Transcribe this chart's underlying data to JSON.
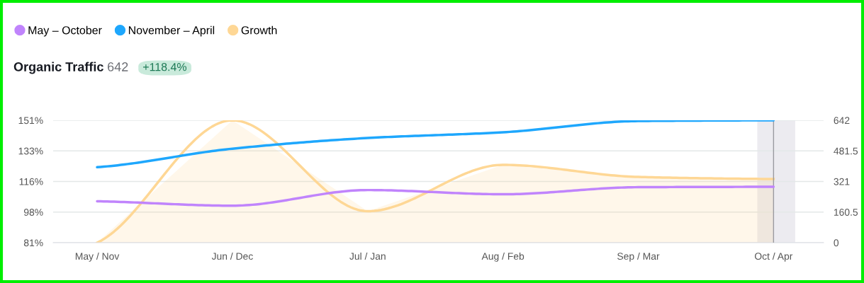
{
  "chart_data": {
    "type": "line",
    "title": "Organic Traffic",
    "subtitle": "642",
    "annotations": [
      "+118.4%"
    ],
    "categories": [
      "May / Nov",
      "Jun / Dec",
      "Jul / Jan",
      "Aug / Feb",
      "Sep / Mar",
      "Oct / Apr"
    ],
    "series": [
      {
        "name": "May – October",
        "color": "#c084fc",
        "axis": "y2",
        "values": [
          217,
          194,
          276,
          254,
          291,
          293
        ]
      },
      {
        "name": "November – April",
        "color": "#1ea7fd",
        "axis": "y2",
        "values": [
          396,
          493,
          549,
          579,
          638,
          642
        ]
      },
      {
        "name": "Growth",
        "color": "#fed795",
        "type": "area",
        "values": [
          81,
          151,
          99,
          125.5,
          118.6,
          117.4
        ]
      }
    ],
    "ylim": [
      81,
      151
    ],
    "yticks": [
      {
        "value": 81,
        "label": "81%"
      },
      {
        "value": 98.5,
        "label": "98%"
      },
      {
        "value": 116,
        "label": "116%"
      },
      {
        "value": 133.5,
        "label": "133%"
      },
      {
        "value": 151,
        "label": "151%"
      }
    ],
    "y2lim": [
      0,
      642
    ],
    "y2ticks": [
      0,
      160.5,
      321,
      481.5,
      642
    ],
    "bands": [
      {
        "axis": "x",
        "from": "Oct / Apr",
        "to": "Oct / Apr",
        "color": "#ecebf0"
      }
    ],
    "ref_lines": [
      {
        "axis": "x",
        "value": "Oct / Apr",
        "color": "#9a9aa0"
      }
    ],
    "grid": "y",
    "legend": "top left"
  }
}
